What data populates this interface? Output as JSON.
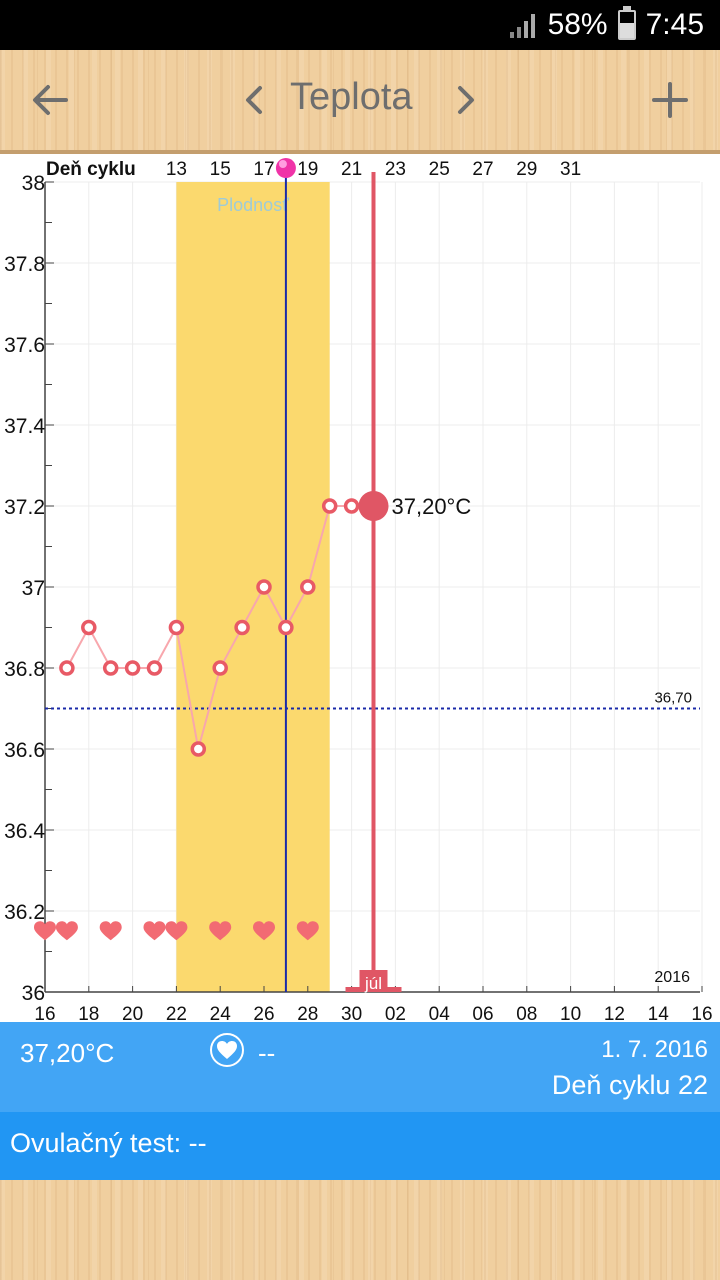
{
  "status_bar": {
    "battery": "58%",
    "time": "7:45"
  },
  "app_bar": {
    "title": "Teplota"
  },
  "chart_data": {
    "type": "line",
    "top_axis_label": "Deň cyklu",
    "top_ticks": [
      "13",
      "15",
      "17",
      "19",
      "21",
      "23",
      "25",
      "27",
      "29",
      "31"
    ],
    "bottom_ticks": [
      "16",
      "18",
      "20",
      "22",
      "24",
      "26",
      "28",
      "30",
      "02",
      "04",
      "06",
      "08",
      "10",
      "12",
      "14",
      "16"
    ],
    "y_ticks": [
      "38",
      "37.8",
      "37.6",
      "37.4",
      "37.2",
      "37",
      "36.8",
      "36.6",
      "36.4",
      "36.2",
      "36"
    ],
    "ylim": [
      36,
      38
    ],
    "fertile_label": "Plodnosť",
    "month_label": "júl",
    "year_label": "2016",
    "coverline_value": 36.7,
    "coverline_label": "36,70",
    "selected_label": "37,20°C",
    "selected_value": 37.2,
    "x_dates": [
      "2016-06-17",
      "2016-06-18",
      "2016-06-19",
      "2016-06-20",
      "2016-06-21",
      "2016-06-22",
      "2016-06-23",
      "2016-06-24",
      "2016-06-25",
      "2016-06-26",
      "2016-06-27",
      "2016-06-28",
      "2016-06-29",
      "2016-06-30",
      "2016-07-01"
    ],
    "temperatures": [
      36.8,
      36.9,
      36.8,
      36.8,
      36.8,
      36.9,
      36.6,
      36.8,
      36.9,
      37.0,
      36.9,
      37.0,
      37.2,
      37.2,
      37.2
    ],
    "heart_dates": [
      "2016-06-16",
      "2016-06-17",
      "2016-06-19",
      "2016-06-21",
      "2016-06-22",
      "2016-06-24",
      "2016-06-26",
      "2016-06-28"
    ],
    "fertile_window": [
      "2016-06-22",
      "2016-06-28"
    ],
    "ovulation_date": "2016-06-27",
    "selected_date": "2016-07-01",
    "colors": {
      "line": "#f8a7ad",
      "point": "#e85a66",
      "selected": "#e05665",
      "fertile": "#fbd96e",
      "ovulation_line": "#1a2aa8",
      "coverline": "#1a2aa8",
      "heart": "#f26b73"
    }
  },
  "info": {
    "temperature": "37,20°C",
    "intercourse_value": "--",
    "date": "1. 7. 2016",
    "cycle_day": "Deň cyklu 22"
  },
  "ovulation": {
    "label": "Ovulačný test: --"
  },
  "colors": {
    "info_bg": "#42a5f5",
    "ovulation_bg": "#2196f3"
  }
}
